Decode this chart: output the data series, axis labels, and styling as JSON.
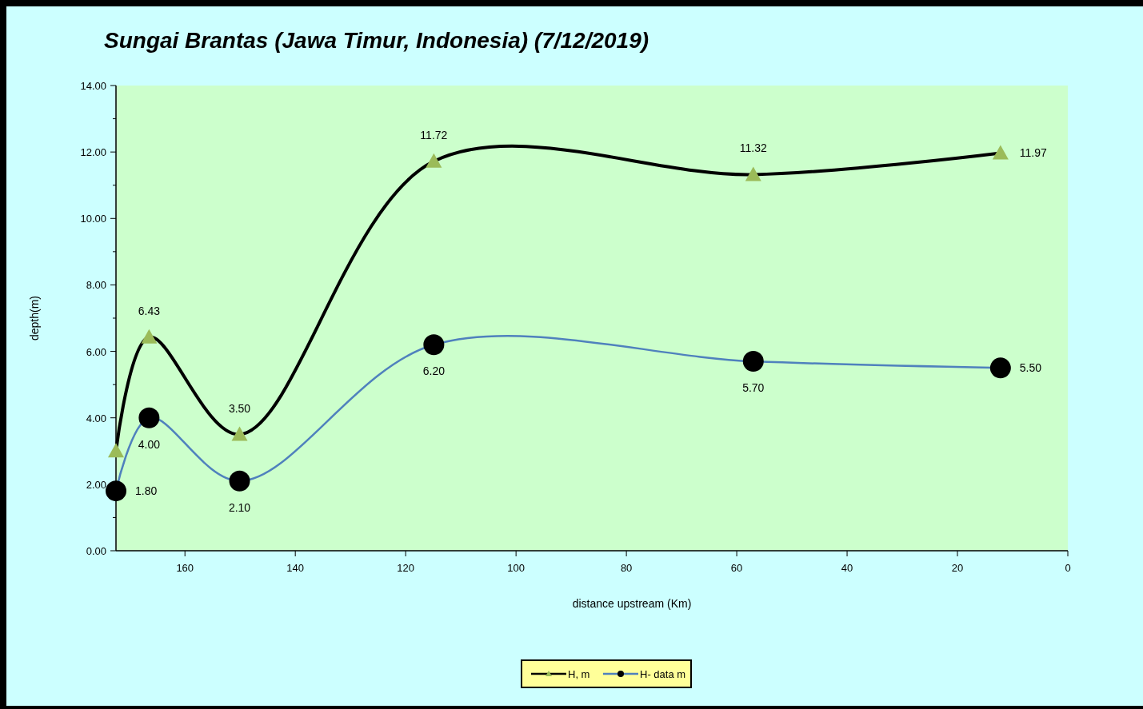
{
  "chart_data": {
    "type": "line",
    "title": "Sungai Brantas (Jawa Timur, Indonesia) (7/12/2019)",
    "xlabel": "distance upstream (Km)",
    "ylabel": "depth(m)",
    "x": [
      172.5,
      166.5,
      150.1,
      114.9,
      57,
      12.2
    ],
    "series": [
      {
        "name": "H, m",
        "color": "#000000",
        "marker": "triangle",
        "colors": [
          "#9bbb59",
          "#9bbb59",
          "#9bbb59",
          "#9bbb59",
          "#9bbb59",
          "#9bbb59"
        ],
        "values": [
          3.0,
          6.43,
          3.5,
          11.72,
          11.32,
          11.97
        ],
        "value_labels": [
          null,
          "6.43",
          "3.50",
          "11.72",
          "11.32",
          "11.97"
        ]
      },
      {
        "name": "H- data m",
        "color": "#4f81bd",
        "marker": "circle",
        "colors": [
          "#000000",
          "#000000",
          "#000000",
          "#000000",
          "#000000",
          "#000000"
        ],
        "values": [
          1.8,
          4.0,
          2.1,
          6.2,
          5.7,
          5.5
        ],
        "value_labels": [
          "1.80",
          "4.00",
          "2.10",
          "6.20",
          "5.70",
          "5.50"
        ]
      }
    ],
    "xlim": [
      172.5,
      0
    ],
    "xticks": [
      160,
      140,
      120,
      100,
      80,
      60,
      40,
      20,
      0
    ],
    "ylim": [
      0,
      14
    ],
    "yticks": [
      {
        "value": 0,
        "label": "0.00"
      },
      {
        "value": 1,
        "label": null
      },
      {
        "value": 2,
        "label": "2.00"
      },
      {
        "value": 3,
        "label": null
      },
      {
        "value": 4,
        "label": "4.00"
      },
      {
        "value": 5,
        "label": null
      },
      {
        "value": 6,
        "label": "6.00"
      },
      {
        "value": 7,
        "label": null
      },
      {
        "value": 8,
        "label": "8.00"
      },
      {
        "value": 9,
        "label": null
      },
      {
        "value": 10,
        "label": "10.00"
      },
      {
        "value": 11,
        "label": null
      },
      {
        "value": 12,
        "label": "12.00"
      },
      {
        "value": 13,
        "label": null
      },
      {
        "value": 14,
        "label": "14.00"
      }
    ],
    "grid": false,
    "legend": "bottom"
  }
}
